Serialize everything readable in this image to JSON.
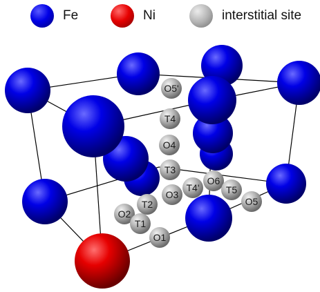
{
  "legend": {
    "fe": {
      "label": "Fe",
      "color": "#0000e6"
    },
    "ni": {
      "label": "Ni",
      "color": "#e60000"
    },
    "site": {
      "label": "interstitial site",
      "color": "#b3b3b3"
    }
  },
  "interstitial_labels": [
    "O5'",
    "T4",
    "O4",
    "T3",
    "O3",
    "T4'",
    "O6",
    "T5",
    "O5",
    "T2",
    "O2",
    "T1",
    "O1"
  ],
  "lattice_edges_color": "#000000"
}
